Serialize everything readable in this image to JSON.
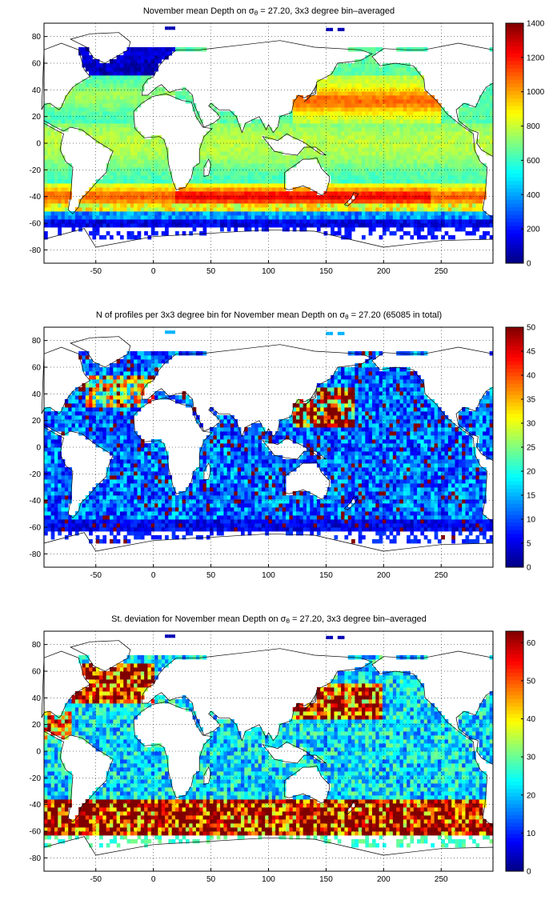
{
  "chart_data": [
    {
      "type": "heatmap",
      "title_prefix": "November mean Depth on σ",
      "title_sub": "θ",
      "title_suffix": " = 27.20, 3x3 degree bin–averaged",
      "xlim": [
        -95,
        295
      ],
      "ylim": [
        -90,
        90
      ],
      "x_ticks": [
        "-50",
        "0",
        "50",
        "100",
        "150",
        "200",
        "250"
      ],
      "y_ticks": [
        "80",
        "60",
        "40",
        "20",
        "0",
        "-20",
        "-40",
        "-60",
        "-80"
      ],
      "colorbar_ticks": [
        "1400",
        "1200",
        "1000",
        "800",
        "600",
        "400",
        "200",
        "0"
      ],
      "clim": [
        0,
        1400
      ],
      "colormap": "jet",
      "grid": "dotted",
      "cell_size_deg": 3,
      "field_description_values": {
        "polar_south": 100,
        "subpolar_south": 900,
        "southern_max": 1200,
        "tropical": 750,
        "north_pacific": 1000,
        "north_atlantic": 650,
        "labrador_nordic": 80
      }
    },
    {
      "type": "heatmap",
      "title_prefix": "N of profiles per 3x3 degree bin for November mean Depth on σ",
      "title_sub": "θ",
      "title_suffix": " = 27.20 (65085 in total)",
      "total_profiles": 65085,
      "xlim": [
        -95,
        295
      ],
      "ylim": [
        -90,
        90
      ],
      "x_ticks": [
        "-50",
        "0",
        "50",
        "100",
        "150",
        "200",
        "250"
      ],
      "y_ticks": [
        "80",
        "60",
        "40",
        "20",
        "0",
        "-20",
        "-40",
        "-60",
        "-80"
      ],
      "colorbar_ticks": [
        "50",
        "45",
        "40",
        "35",
        "30",
        "25",
        "20",
        "15",
        "10",
        "5",
        "0"
      ],
      "clim": [
        0,
        50
      ],
      "colormap": "jet",
      "grid": "dotted",
      "cell_size_deg": 3
    },
    {
      "type": "heatmap",
      "title_prefix": "St. deviation for November mean Depth on σ",
      "title_sub": "θ",
      "title_suffix": " = 27.20, 3x3 degree bin–averaged",
      "xlim": [
        -95,
        295
      ],
      "ylim": [
        -90,
        90
      ],
      "x_ticks": [
        "-50",
        "0",
        "50",
        "100",
        "150",
        "200",
        "250"
      ],
      "y_ticks": [
        "80",
        "60",
        "40",
        "20",
        "0",
        "-20",
        "-40",
        "-60",
        "-80"
      ],
      "colorbar_ticks": [
        "60",
        "50",
        "40",
        "30",
        "20",
        "10",
        "0"
      ],
      "clim": [
        0,
        63
      ],
      "colormap": "jet",
      "grid": "dotted",
      "cell_size_deg": 3
    }
  ]
}
